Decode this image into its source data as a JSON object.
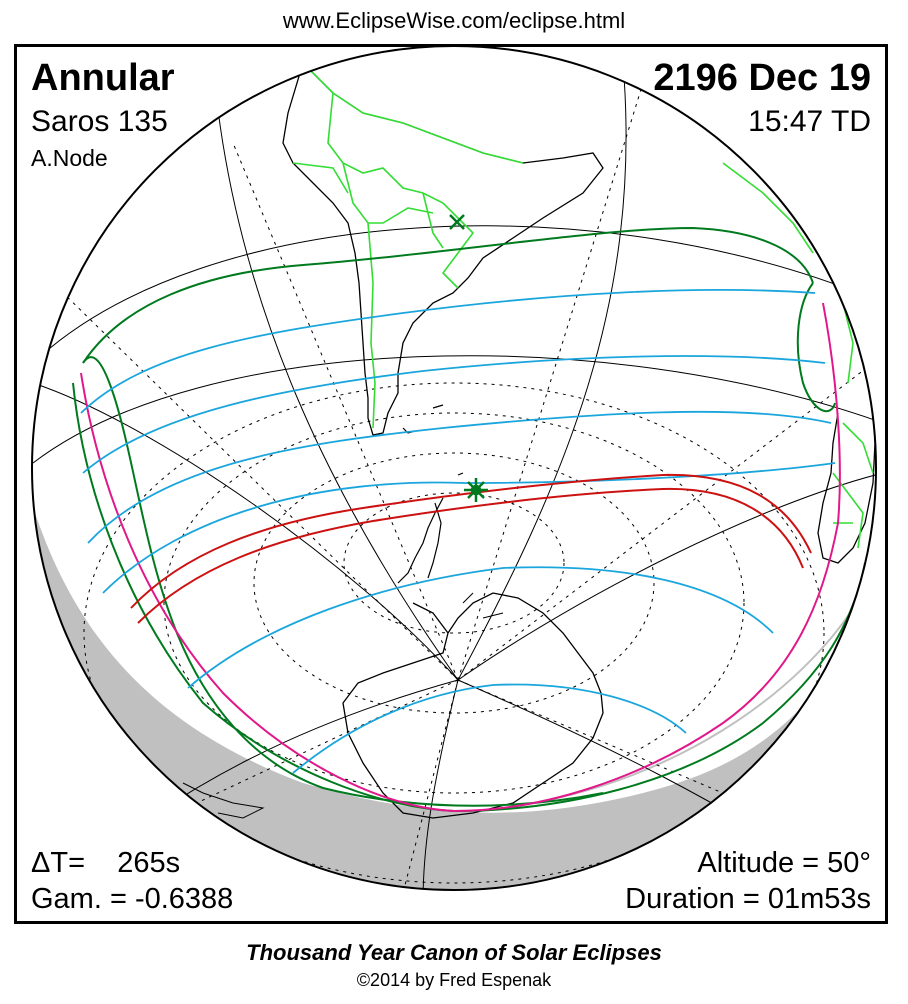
{
  "header": {
    "url": "www.EclipseWise.com/eclipse.html"
  },
  "eclipse": {
    "type": "Annular",
    "saros": "Saros 135",
    "node": "A.Node",
    "date": "2196 Dec 19",
    "time": "15:47 TD",
    "delta_t": "ΔT=    265s",
    "gamma": "Gam. = -0.6388",
    "altitude": "Altitude = 50°",
    "duration": "Duration = 01m53s"
  },
  "footer": {
    "title": "Thousand Year Canon of Solar Eclipses",
    "copyright": "©2014 by Fred Espenak"
  },
  "map": {
    "colors": {
      "penumbra_limits": "#007a1e",
      "penumbra_contours": "#1aa6dd",
      "central_path": "#cc1111",
      "rise_set_curve": "#e0188a",
      "land_borders": "#33dd33",
      "night_shading": "#c0c0c0"
    },
    "icons": [
      "greatest-eclipse-star-icon",
      "subsolar-point-x-icon"
    ]
  }
}
